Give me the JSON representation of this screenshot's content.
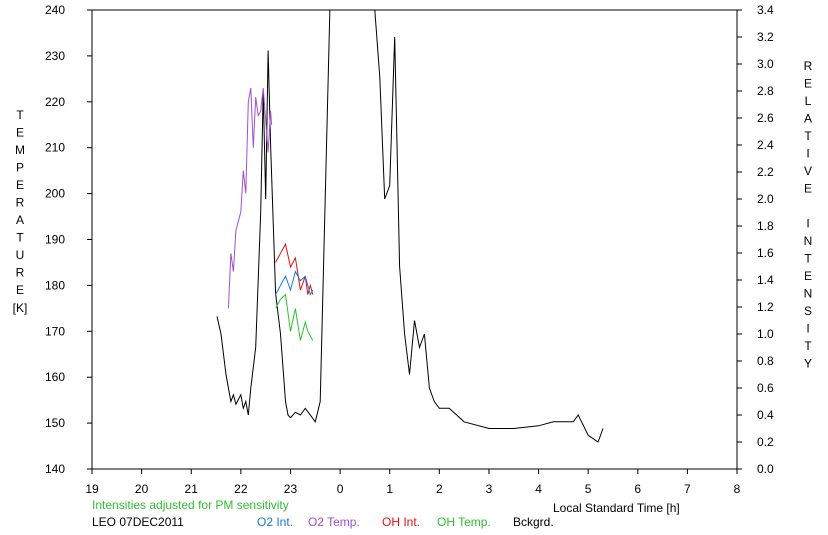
{
  "chart_data": {
    "type": "line",
    "title": "",
    "x_ticks": [
      {
        "v": 19,
        "label": "19"
      },
      {
        "v": 20,
        "label": "20"
      },
      {
        "v": 21,
        "label": "21"
      },
      {
        "v": 22,
        "label": "22"
      },
      {
        "v": 23,
        "label": "23"
      },
      {
        "v": 24,
        "label": "0"
      },
      {
        "v": 25,
        "label": "1"
      },
      {
        "v": 26,
        "label": "2"
      },
      {
        "v": 27,
        "label": "3"
      },
      {
        "v": 28,
        "label": "4"
      },
      {
        "v": 29,
        "label": "5"
      },
      {
        "v": 30,
        "label": "6"
      },
      {
        "v": 31,
        "label": "7"
      },
      {
        "v": 32,
        "label": "8"
      }
    ],
    "xlim": [
      19,
      32
    ],
    "ylim_left": [
      140,
      240
    ],
    "y_left_ticks": [
      "140",
      "150",
      "160",
      "170",
      "180",
      "190",
      "200",
      "210",
      "220",
      "230",
      "240"
    ],
    "ylim_right": [
      0,
      3.4
    ],
    "y_right_ticks": [
      "0.0",
      "0.2",
      "0.4",
      "0.6",
      "0.8",
      "1.0",
      "1.2",
      "1.4",
      "1.6",
      "1.8",
      "2.0",
      "2.2",
      "2.4",
      "2.6",
      "2.8",
      "3.0",
      "3.2",
      "3.4"
    ],
    "ylabel_left": "TEMPERATURE",
    "ylabel_left_unit": "[K]",
    "ylabel_right": "RELATIVE INTENSITY",
    "xlabel": "Local Standard Time [h]",
    "note": "Intensities adjusted for PM sensitivity",
    "station": "LEO 07DEC2011",
    "legend": [
      {
        "label": "O2 Int.",
        "color": "#1e78d2"
      },
      {
        "label": "O2 Temp.",
        "color": "#a050d2"
      },
      {
        "label": "OH Int.",
        "color": "#e01010"
      },
      {
        "label": "OH Temp.",
        "color": "#30c030"
      },
      {
        "label": "Bckgrd.",
        "color": "#000000"
      }
    ],
    "series": [
      {
        "color": "#000000",
        "axis": "right",
        "x": [
          21.52,
          21.6,
          21.7,
          21.75,
          21.8,
          21.85,
          21.9,
          22.0,
          22.05,
          22.1,
          22.15,
          22.2,
          22.3,
          22.4,
          22.45,
          22.5,
          22.55,
          22.6,
          22.7,
          22.8,
          22.9,
          22.95,
          23.0,
          23.1,
          23.2,
          23.3,
          23.5,
          23.6,
          23.8,
          24.0,
          24.3,
          24.5,
          24.6,
          24.7,
          24.8,
          24.9,
          25.0,
          25.1,
          25.2,
          25.3,
          25.4,
          25.5,
          25.6,
          25.7,
          25.8,
          25.9,
          26.0,
          26.2,
          26.5,
          27.0,
          27.5,
          28.0,
          28.3,
          28.5,
          28.6,
          28.7,
          28.8,
          29.0,
          29.2,
          29.3
        ],
        "y": [
          1.13,
          1.0,
          0.7,
          0.6,
          0.5,
          0.55,
          0.48,
          0.55,
          0.45,
          0.5,
          0.4,
          0.6,
          0.9,
          1.9,
          2.8,
          2.0,
          3.1,
          2.4,
          1.3,
          1.0,
          0.5,
          0.4,
          0.38,
          0.42,
          0.4,
          0.45,
          0.35,
          0.5,
          3.5,
          3.5,
          3.5,
          3.5,
          3.5,
          3.4,
          2.9,
          2.0,
          2.1,
          3.2,
          1.5,
          1.0,
          0.7,
          1.1,
          0.9,
          1.0,
          0.6,
          0.5,
          0.45,
          0.45,
          0.35,
          0.3,
          0.3,
          0.32,
          0.35,
          0.35,
          0.35,
          0.35,
          0.4,
          0.25,
          0.2,
          0.3
        ]
      },
      {
        "color": "#a050d2",
        "axis": "left",
        "x": [
          21.75,
          21.8,
          21.85,
          21.9,
          22.0,
          22.05,
          22.1,
          22.15,
          22.2,
          22.25,
          22.3,
          22.35,
          22.4,
          22.45,
          22.5,
          22.55,
          22.6,
          22.62
        ],
        "y": [
          175,
          187,
          183,
          192,
          196,
          205,
          200,
          220,
          223,
          210,
          221,
          217,
          218,
          223,
          216,
          209,
          218,
          215
        ]
      },
      {
        "color": "#e01010",
        "axis": "left",
        "x": [
          22.7,
          22.8,
          22.9,
          23.0,
          23.1,
          23.2,
          23.3,
          23.35,
          23.4,
          23.45
        ],
        "y": [
          185,
          187,
          189,
          184,
          186,
          179,
          182,
          178,
          180,
          178
        ]
      },
      {
        "color": "#30c030",
        "axis": "left",
        "x": [
          22.7,
          22.8,
          22.9,
          23.0,
          23.1,
          23.2,
          23.3,
          23.35,
          23.4,
          23.45
        ],
        "y": [
          175,
          177,
          178,
          170,
          175,
          168,
          172,
          170,
          169,
          168
        ]
      },
      {
        "color": "#1e78d2",
        "axis": "left",
        "x": [
          22.7,
          22.8,
          22.9,
          23.0,
          23.1,
          23.2,
          23.3,
          23.35,
          23.4,
          23.45
        ],
        "y": [
          178,
          180,
          182,
          179,
          183,
          181,
          182,
          180,
          178,
          179
        ]
      }
    ]
  }
}
